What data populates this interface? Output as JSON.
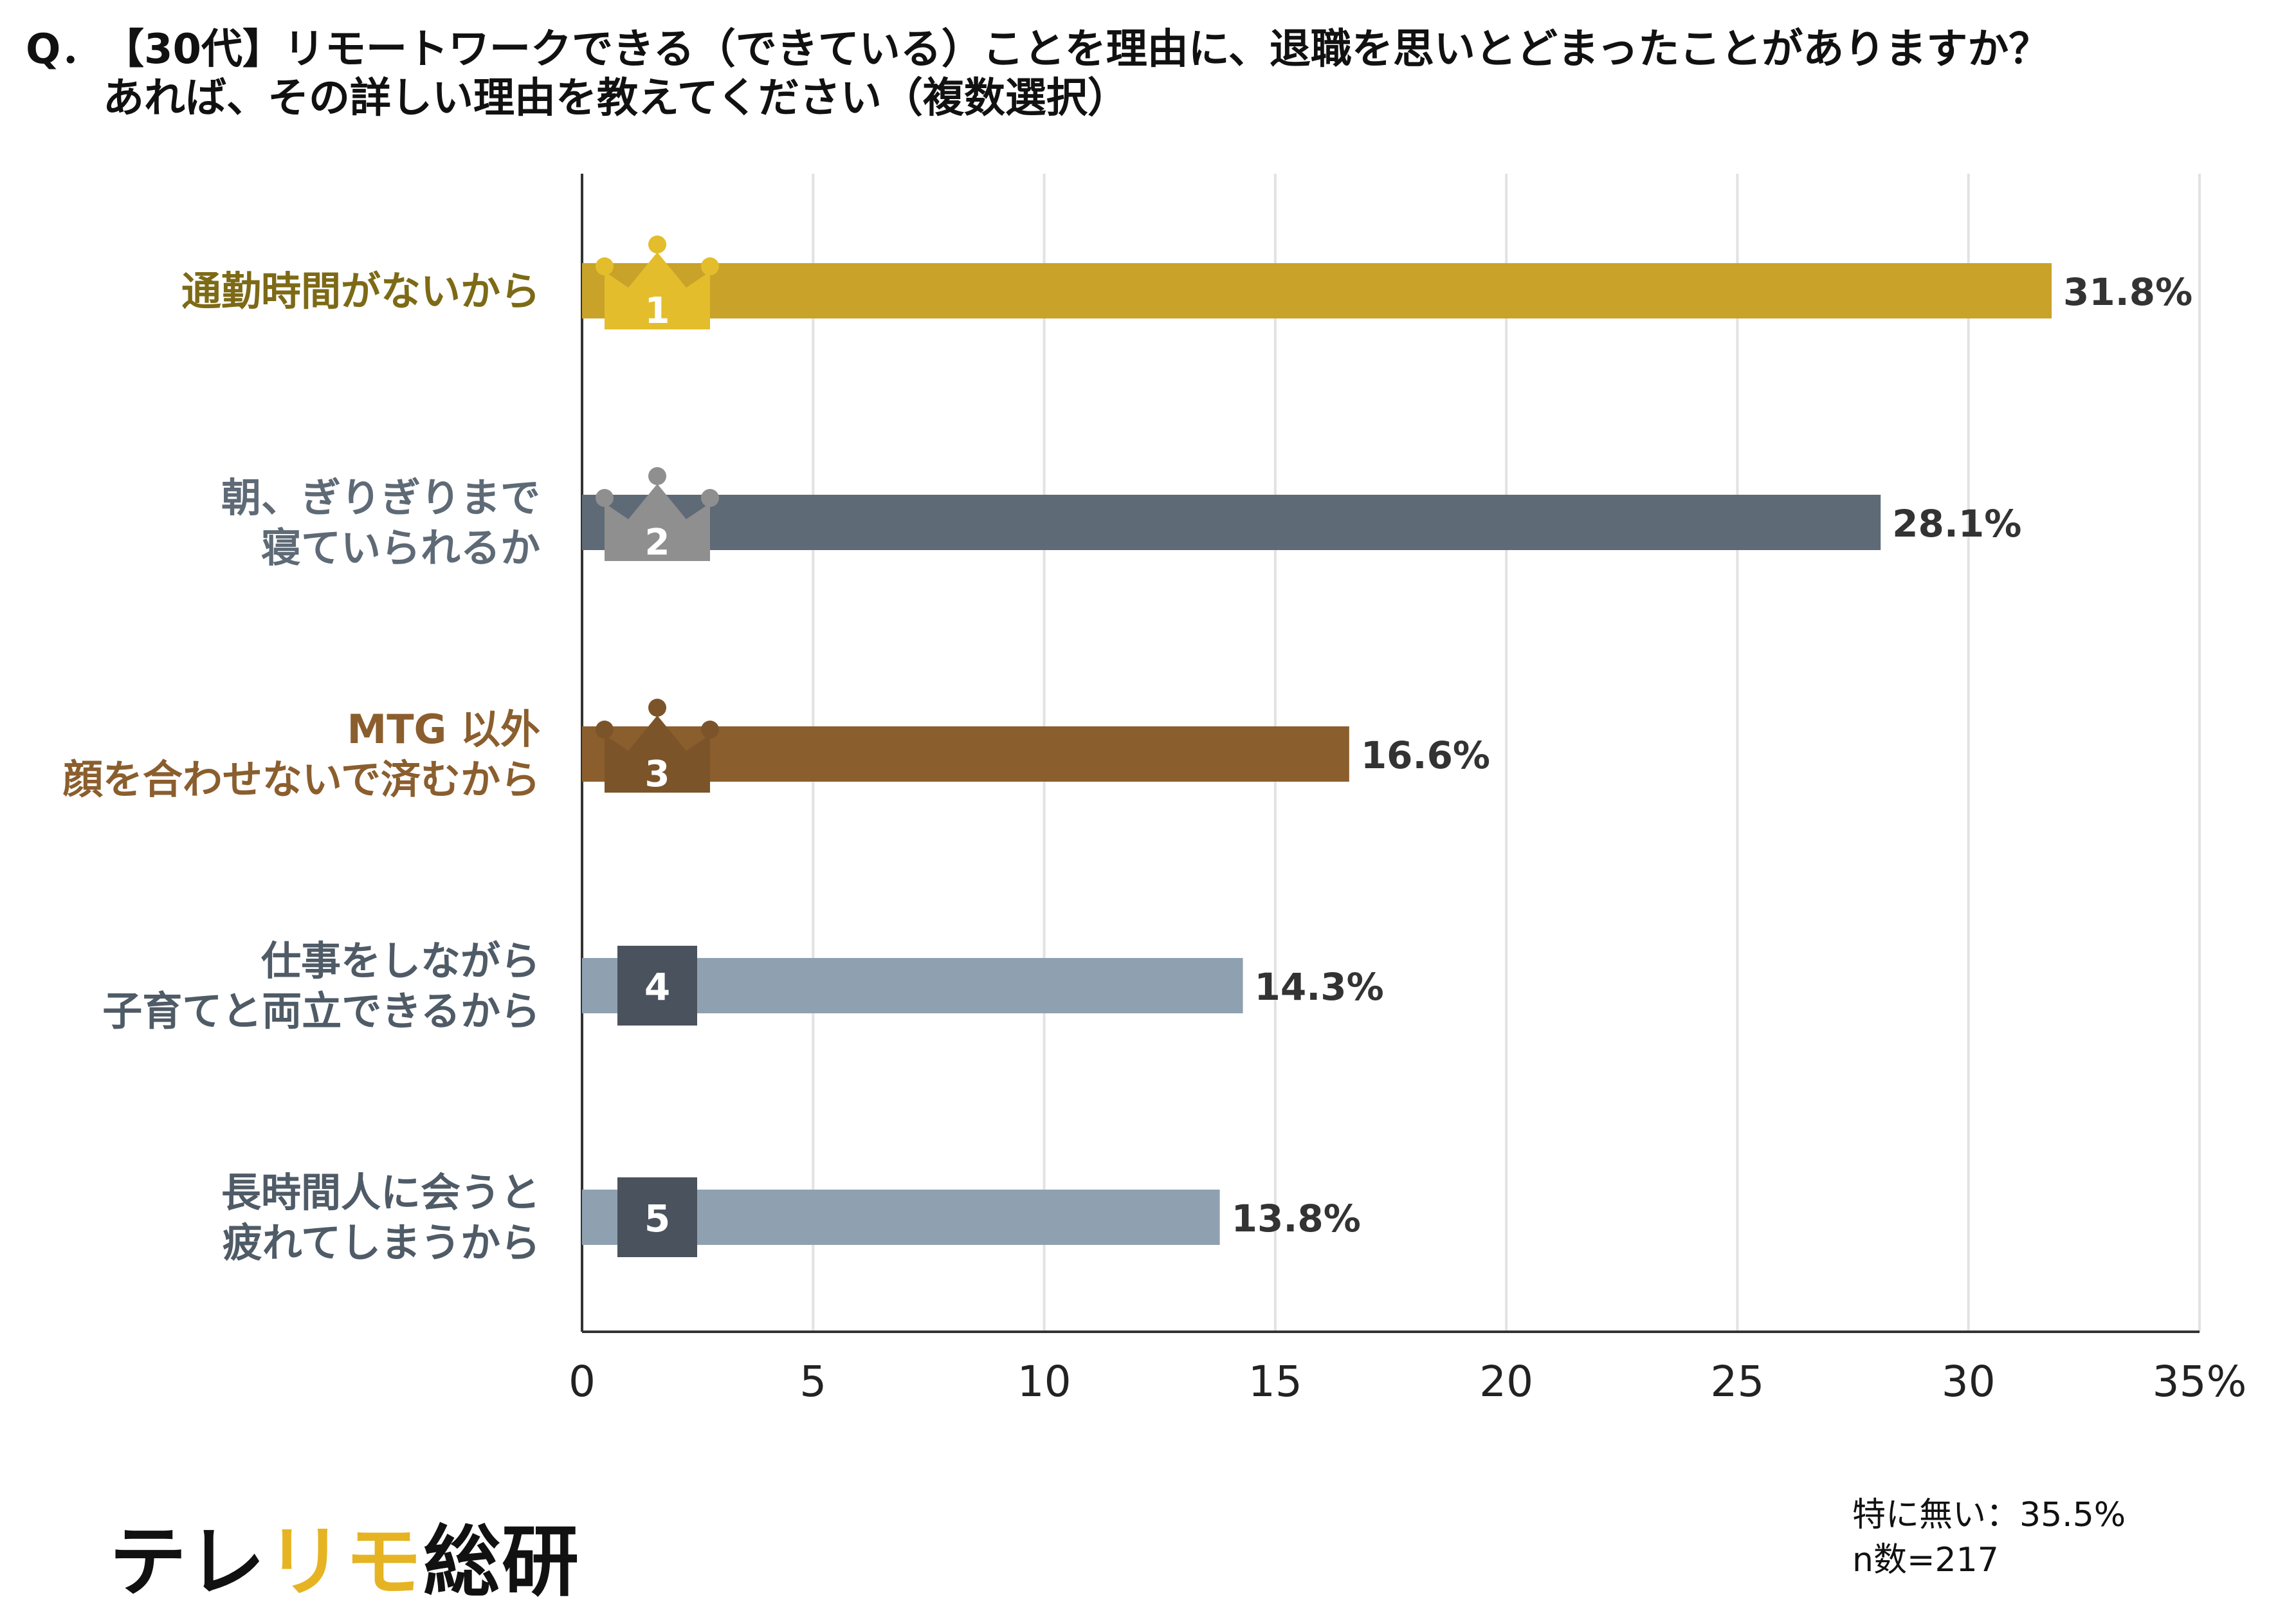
{
  "question": {
    "prefix": "Q．",
    "line1": "【30代】リモートワークできる（できている）ことを理由に、退職を思いとどまったことがありますか？",
    "line2": "あれば、その詳しい理由を教えてください（複数選択）"
  },
  "chart_data": {
    "type": "bar",
    "orientation": "horizontal",
    "categories": [
      [
        "通勤時間がないから"
      ],
      [
        "朝、ぎりぎりまで",
        "寝ていられるか"
      ],
      [
        "MTG 以外",
        "顔を合わせないで済むから"
      ],
      [
        "仕事をしながら",
        "子育てと両立できるから"
      ],
      [
        "長時間人に会うと",
        "疲れてしまうから"
      ]
    ],
    "values": [
      31.8,
      28.1,
      16.6,
      14.3,
      13.8
    ],
    "value_labels": [
      "31.8%",
      "28.1%",
      "16.6%",
      "14.3%",
      "13.8%"
    ],
    "ranks": [
      "1",
      "2",
      "3",
      "4",
      "5"
    ],
    "bar_colors": [
      "#c9a22a",
      "#5e6a76",
      "#8b5e2e",
      "#8fa1b1",
      "#8fa1b1"
    ],
    "label_colors": [
      "#7d6a16",
      "#5e6a76",
      "#8b5e2e",
      "#4f5b66",
      "#4f5b66"
    ],
    "crown_colors": [
      "#e3bd2c",
      "#8f8f8f",
      "#7c5429"
    ],
    "badge_color": "#4a535d",
    "xlim": [
      0,
      35
    ],
    "xticks": [
      "0",
      "5",
      "10",
      "15",
      "20",
      "25",
      "30",
      "35%"
    ],
    "grid": true
  },
  "footer": {
    "brand_part1": "テレ",
    "brand_accent": "リモ",
    "brand_part2": "総研",
    "note_line1": "特に無い：35.5%",
    "note_line2": "n数=217"
  }
}
